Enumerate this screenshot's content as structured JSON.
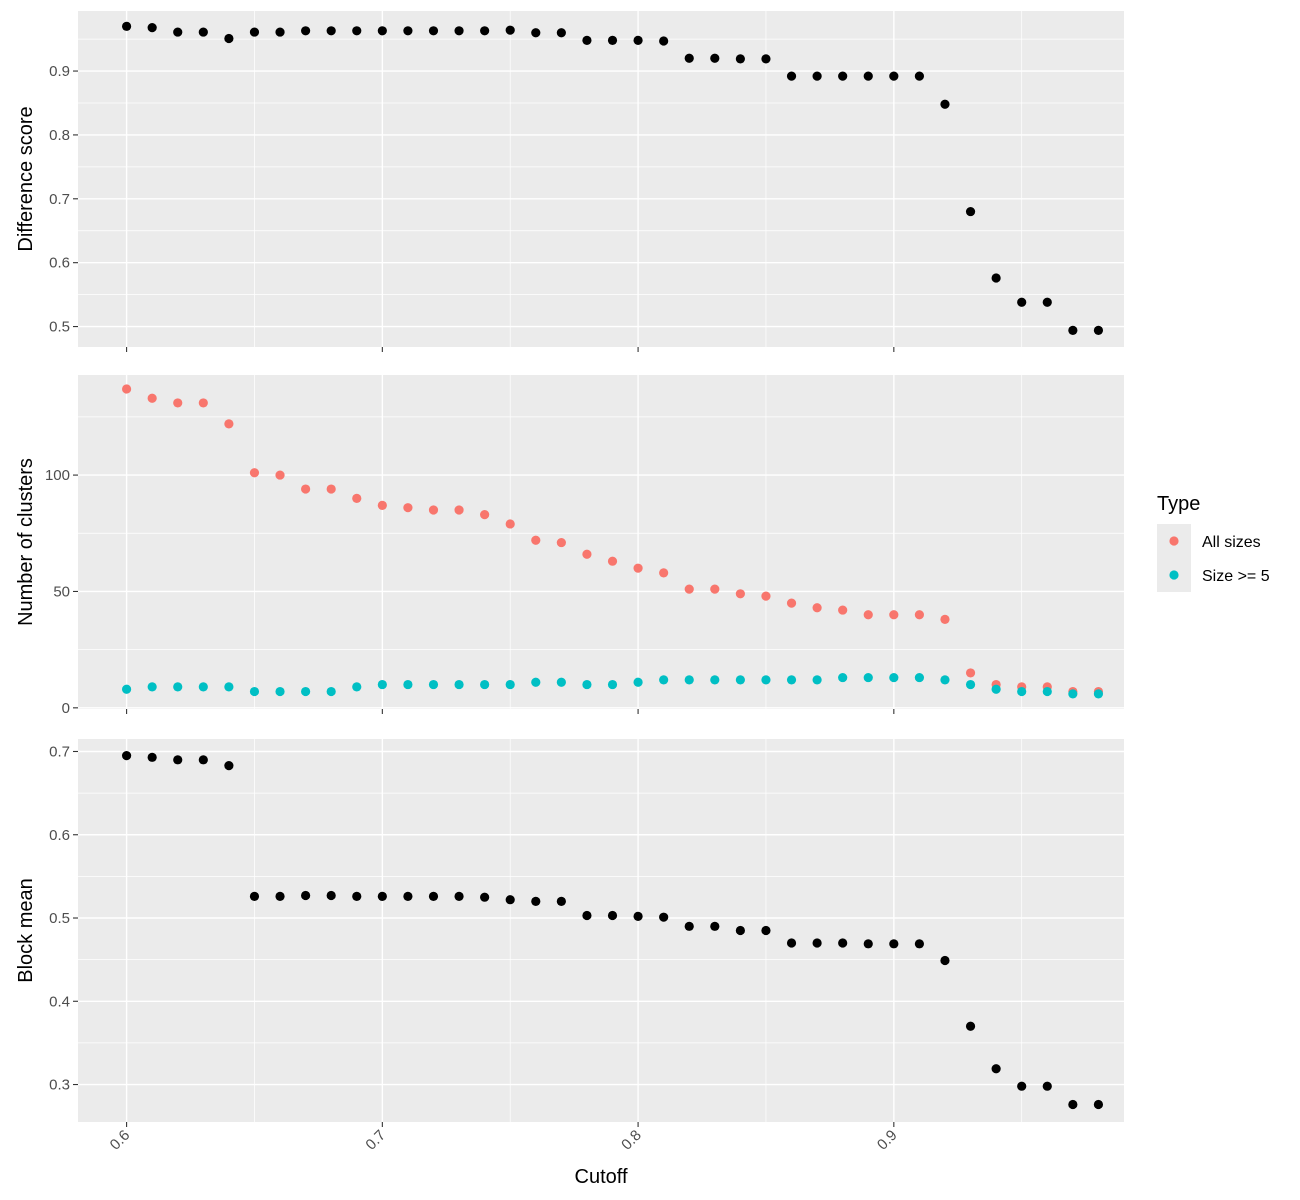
{
  "chart_data": {
    "type": "scatter",
    "xlabel": "Cutoff",
    "xlim": [
      0.581,
      0.99
    ],
    "x_ticks": [
      "0.6",
      "0.7",
      "0.8",
      "0.9"
    ],
    "x_tick_values": [
      0.6,
      0.7,
      0.8,
      0.9
    ],
    "x": [
      0.6,
      0.61,
      0.62,
      0.63,
      0.64,
      0.65,
      0.66,
      0.67,
      0.68,
      0.69,
      0.7,
      0.71,
      0.72,
      0.73,
      0.74,
      0.75,
      0.76,
      0.77,
      0.78,
      0.79,
      0.8,
      0.81,
      0.82,
      0.83,
      0.84,
      0.85,
      0.86,
      0.87,
      0.88,
      0.89,
      0.9,
      0.91,
      0.92,
      0.93,
      0.94,
      0.95,
      0.96,
      0.97,
      0.98
    ],
    "grid": true,
    "legend": {
      "title": "Type",
      "position": "right",
      "entries": [
        {
          "label": "All sizes",
          "color": "#f8766d"
        },
        {
          "label": "Size >= 5",
          "color": "#00bfc4"
        }
      ]
    },
    "panels": [
      {
        "ylabel": "Difference score",
        "ylim": [
          0.468,
          0.994
        ],
        "y_ticks": [
          "0.5",
          "0.6",
          "0.7",
          "0.8",
          "0.9"
        ],
        "y_tick_values": [
          0.5,
          0.6,
          0.7,
          0.8,
          0.9
        ],
        "series": [
          {
            "color": "#000000",
            "values": [
              0.97,
              0.968,
              0.961,
              0.961,
              0.951,
              0.961,
              0.961,
              0.963,
              0.963,
              0.963,
              0.963,
              0.963,
              0.963,
              0.963,
              0.963,
              0.964,
              0.96,
              0.96,
              0.948,
              0.948,
              0.948,
              0.947,
              0.92,
              0.92,
              0.919,
              0.919,
              0.892,
              0.892,
              0.892,
              0.892,
              0.892,
              0.892,
              0.848,
              0.68,
              0.576,
              0.538,
              0.538,
              0.494,
              0.494
            ]
          }
        ]
      },
      {
        "ylabel": "Number of clusters",
        "ylim": [
          -0.5,
          143
        ],
        "y_ticks": [
          "0",
          "50",
          "100"
        ],
        "y_tick_values": [
          0,
          50,
          100
        ],
        "series": [
          {
            "name": "All sizes",
            "color": "#f8766d",
            "values": [
              137,
              133,
              131,
              131,
              122,
              101,
              100,
              94,
              94,
              90,
              87,
              86,
              85,
              85,
              83,
              79,
              72,
              71,
              66,
              63,
              60,
              58,
              51,
              51,
              49,
              48,
              45,
              43,
              42,
              40,
              40,
              40,
              38,
              15,
              10,
              9,
              9,
              7,
              7
            ]
          },
          {
            "name": "Size >= 5",
            "color": "#00bfc4",
            "values": [
              8,
              9,
              9,
              9,
              9,
              7,
              7,
              7,
              7,
              9,
              10,
              10,
              10,
              10,
              10,
              10,
              11,
              11,
              10,
              10,
              11,
              12,
              12,
              12,
              12,
              12,
              12,
              12,
              13,
              13,
              13,
              13,
              12,
              10,
              8,
              7,
              7,
              6,
              6
            ]
          }
        ]
      },
      {
        "ylabel": "Block mean",
        "ylim": [
          0.255,
          0.715
        ],
        "y_ticks": [
          "0.3",
          "0.4",
          "0.5",
          "0.6",
          "0.7"
        ],
        "y_tick_values": [
          0.3,
          0.4,
          0.5,
          0.6,
          0.7
        ],
        "series": [
          {
            "color": "#000000",
            "values": [
              0.695,
              0.693,
              0.69,
              0.69,
              0.683,
              0.526,
              0.526,
              0.527,
              0.527,
              0.526,
              0.526,
              0.526,
              0.526,
              0.526,
              0.525,
              0.522,
              0.52,
              0.52,
              0.503,
              0.503,
              0.502,
              0.501,
              0.49,
              0.49,
              0.485,
              0.485,
              0.47,
              0.47,
              0.47,
              0.469,
              0.469,
              0.469,
              0.449,
              0.37,
              0.319,
              0.298,
              0.298,
              0.276,
              0.276
            ]
          }
        ]
      }
    ]
  }
}
